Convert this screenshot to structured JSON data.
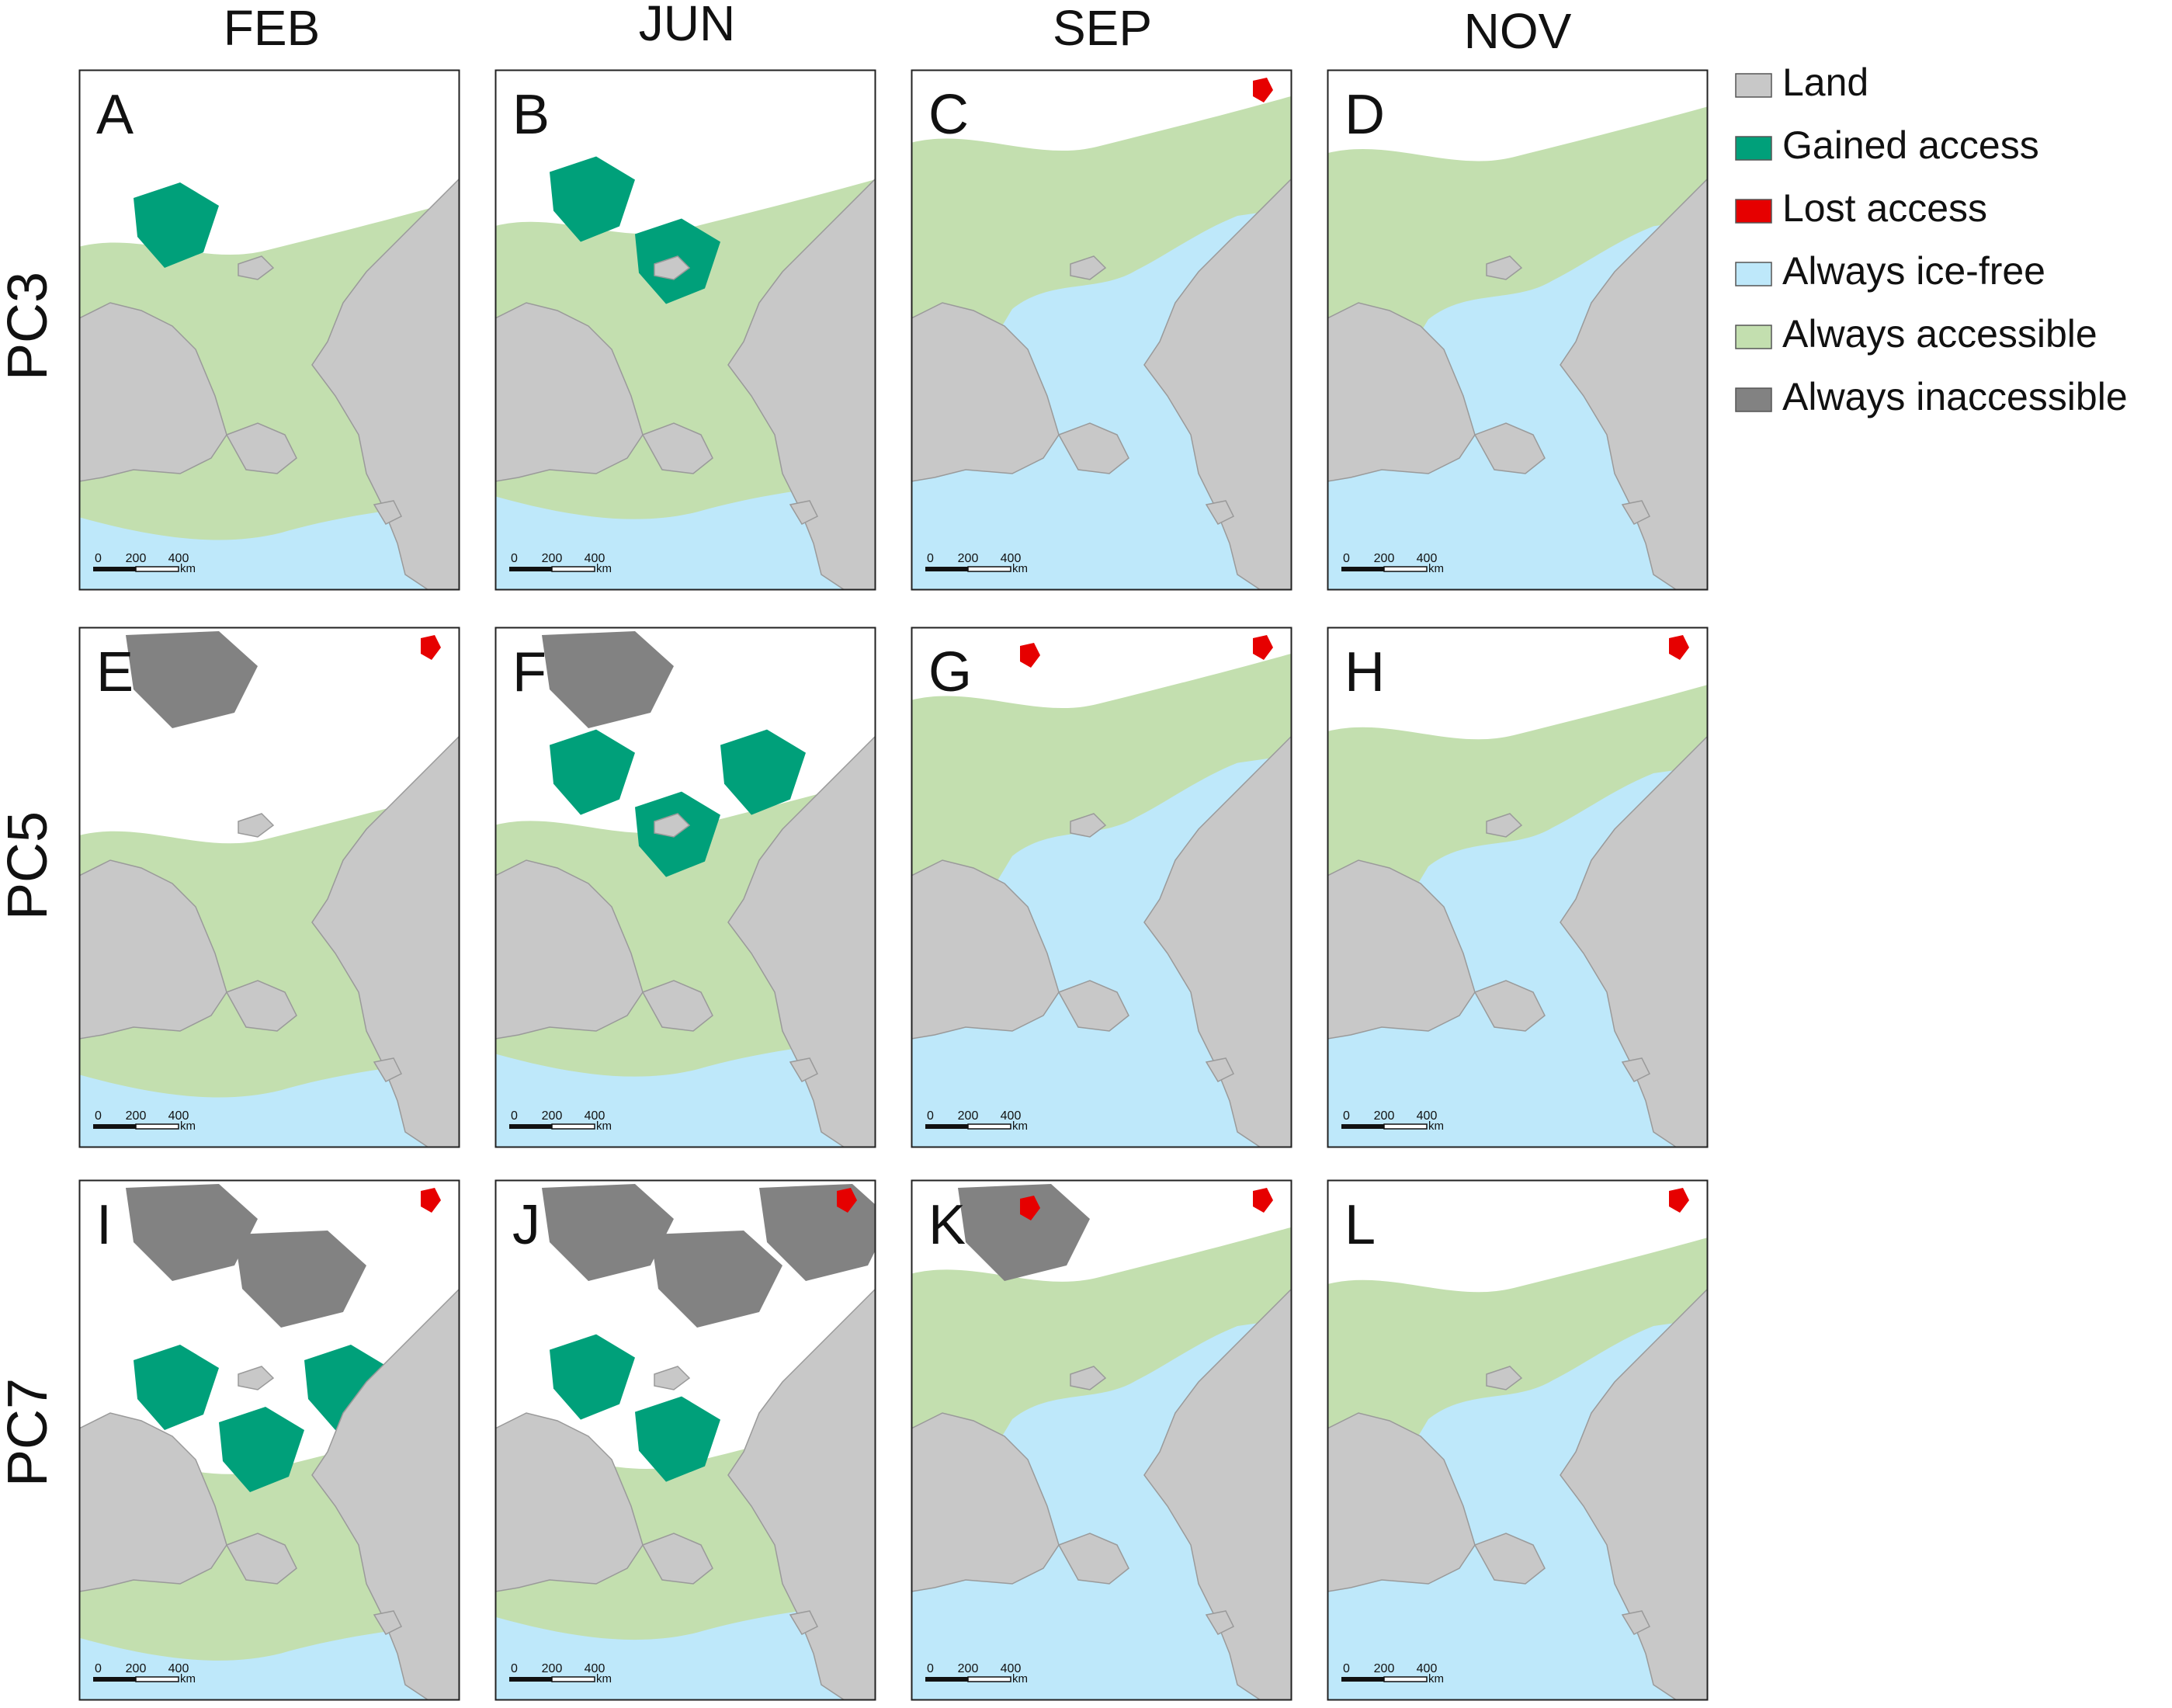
{
  "columns": [
    "FEB",
    "JUN",
    "SEP",
    "NOV"
  ],
  "rows": [
    "PC3",
    "PC5",
    "PC7"
  ],
  "panel_letters": [
    "A",
    "B",
    "C",
    "D",
    "E",
    "F",
    "G",
    "H",
    "I",
    "J",
    "K",
    "L"
  ],
  "scale_bar": {
    "ticks": [
      "0",
      "200",
      "400"
    ],
    "unit": "km"
  },
  "legend": [
    {
      "label": "Land",
      "color": "#c8c8c8"
    },
    {
      "label": "Gained access",
      "color": "#00a07a"
    },
    {
      "label": "Lost access",
      "color": "#e60000"
    },
    {
      "label": "Always ice-free",
      "color": "#bee8fa"
    },
    {
      "label": "Always accessible",
      "color": "#c3dfaf"
    },
    {
      "label": "Always inaccessible",
      "color": "#828282"
    }
  ],
  "panels": [
    {
      "letter": "A",
      "ice_edge": 0.5,
      "green_top": 0.34,
      "blue_bottom": 0.86,
      "gained": 1,
      "lost": 0,
      "inaccessible": 0
    },
    {
      "letter": "B",
      "ice_edge": 0.45,
      "green_top": 0.3,
      "blue_bottom": 0.82,
      "gained": 2,
      "lost": 0,
      "inaccessible": 0
    },
    {
      "letter": "C",
      "ice_edge": 0.3,
      "green_top": 0.14,
      "blue_bottom": 0.4,
      "gained": 0,
      "lost": 1,
      "inaccessible": 0
    },
    {
      "letter": "D",
      "ice_edge": 0.3,
      "green_top": 0.16,
      "blue_bottom": 0.42,
      "gained": 0,
      "lost": 0,
      "inaccessible": 0
    },
    {
      "letter": "E",
      "ice_edge": 0.5,
      "green_top": 0.4,
      "blue_bottom": 0.86,
      "gained": 0,
      "lost": 1,
      "inaccessible": 1
    },
    {
      "letter": "F",
      "ice_edge": 0.48,
      "green_top": 0.38,
      "blue_bottom": 0.82,
      "gained": 3,
      "lost": 0,
      "inaccessible": 1
    },
    {
      "letter": "G",
      "ice_edge": 0.38,
      "green_top": 0.14,
      "blue_bottom": 0.38,
      "gained": 0,
      "lost": 2,
      "inaccessible": 0
    },
    {
      "letter": "H",
      "ice_edge": 0.3,
      "green_top": 0.2,
      "blue_bottom": 0.4,
      "gained": 0,
      "lost": 1,
      "inaccessible": 0
    },
    {
      "letter": "I",
      "ice_edge": 0.6,
      "green_top": 0.55,
      "blue_bottom": 0.88,
      "gained": 3,
      "lost": 1,
      "inaccessible": 2
    },
    {
      "letter": "J",
      "ice_edge": 0.58,
      "green_top": 0.54,
      "blue_bottom": 0.84,
      "gained": 2,
      "lost": 1,
      "inaccessible": 3
    },
    {
      "letter": "K",
      "ice_edge": 0.3,
      "green_top": 0.18,
      "blue_bottom": 0.4,
      "gained": 0,
      "lost": 2,
      "inaccessible": 1
    },
    {
      "letter": "L",
      "ice_edge": 0.3,
      "green_top": 0.2,
      "blue_bottom": 0.4,
      "gained": 0,
      "lost": 1,
      "inaccessible": 0
    }
  ]
}
